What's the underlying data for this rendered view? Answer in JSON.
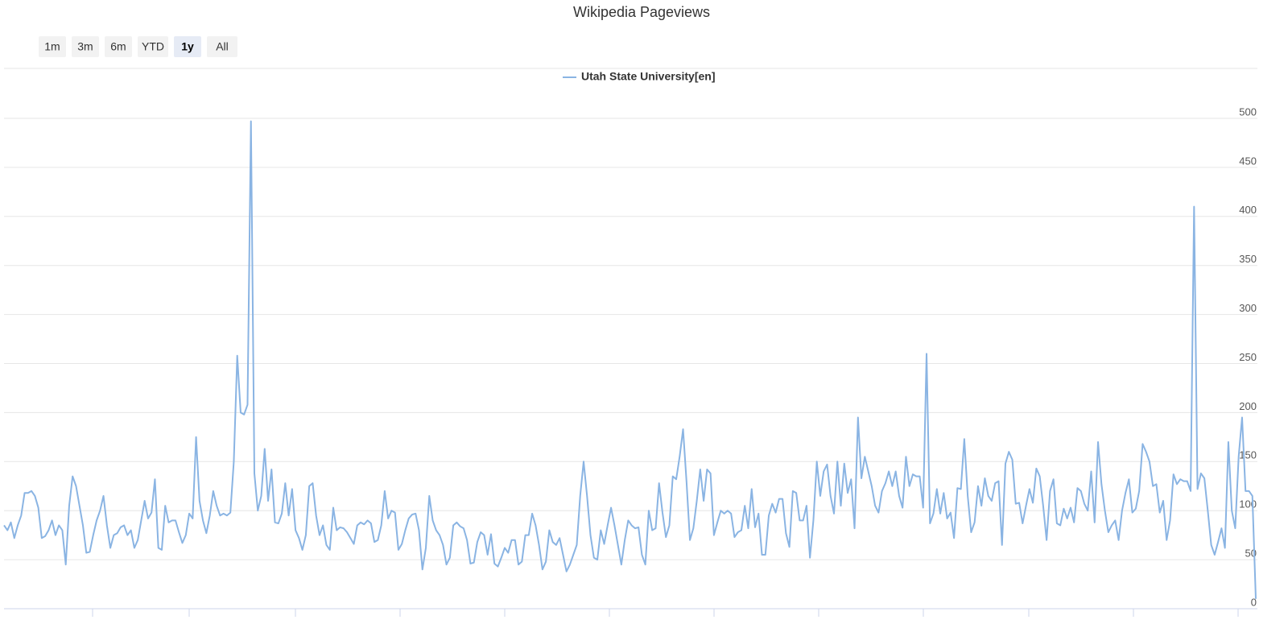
{
  "chart_data": {
    "type": "line",
    "title": "Wikipedia Pageviews",
    "range_buttons": [
      "1m",
      "3m",
      "6m",
      "YTD",
      "1y",
      "All"
    ],
    "selected_button": 4,
    "ylim": [
      0,
      500
    ],
    "yticks": [
      0,
      50,
      100,
      150,
      200,
      250,
      300,
      350,
      400,
      450,
      500
    ],
    "grid": true,
    "series": [
      {
        "name": "Utah State University[en]",
        "color": "#8ab4e3",
        "values": [
          85,
          80,
          88,
          72,
          85,
          95,
          118,
          118,
          120,
          115,
          103,
          72,
          74,
          80,
          90,
          75,
          85,
          80,
          45,
          105,
          135,
          125,
          105,
          85,
          57,
          58,
          75,
          90,
          100,
          115,
          85,
          62,
          75,
          77,
          83,
          85,
          75,
          80,
          62,
          70,
          90,
          110,
          92,
          98,
          132,
          62,
          60,
          105,
          88,
          90,
          90,
          78,
          67,
          75,
          97,
          92,
          175,
          110,
          90,
          77,
          95,
          120,
          105,
          95,
          97,
          95,
          98,
          150,
          258,
          200,
          198,
          208,
          497,
          138,
          100,
          115,
          163,
          110,
          142,
          88,
          87,
          97,
          128,
          95,
          122,
          80,
          72,
          60,
          75,
          125,
          128,
          95,
          75,
          85,
          65,
          60,
          103,
          80,
          83,
          82,
          78,
          72,
          66,
          85,
          88,
          86,
          90,
          87,
          68,
          70,
          85,
          120,
          92,
          100,
          98,
          60,
          66,
          80,
          92,
          96,
          97,
          80,
          40,
          62,
          115,
          90,
          80,
          75,
          65,
          45,
          52,
          85,
          88,
          84,
          82,
          70,
          46,
          47,
          68,
          78,
          75,
          55,
          76,
          46,
          43,
          52,
          62,
          57,
          70,
          70,
          45,
          48,
          75,
          75,
          97,
          85,
          65,
          40,
          48,
          80,
          68,
          65,
          72,
          55,
          38,
          45,
          55,
          65,
          115,
          150,
          115,
          75,
          52,
          50,
          80,
          66,
          85,
          103,
          85,
          65,
          45,
          70,
          90,
          85,
          82,
          83,
          55,
          45,
          100,
          80,
          82,
          128,
          98,
          73,
          85,
          135,
          132,
          155,
          183,
          130,
          70,
          82,
          110,
          142,
          110,
          142,
          138,
          75,
          88,
          100,
          97,
          100,
          97,
          73,
          78,
          80,
          105,
          82,
          122,
          83,
          97,
          55,
          55,
          95,
          107,
          98,
          112,
          112,
          77,
          63,
          120,
          118,
          90,
          90,
          105,
          52,
          90,
          150,
          115,
          140,
          147,
          115,
          97,
          150,
          105,
          148,
          118,
          132,
          82,
          195,
          133,
          155,
          140,
          125,
          105,
          98,
          120,
          128,
          140,
          125,
          140,
          115,
          103,
          155,
          125,
          137,
          135,
          135,
          103,
          260,
          87,
          97,
          122,
          97,
          118,
          92,
          98,
          72,
          123,
          122,
          173,
          115,
          78,
          88,
          125,
          105,
          133,
          115,
          110,
          128,
          130,
          65,
          148,
          160,
          152,
          107,
          108,
          87,
          105,
          122,
          108,
          143,
          135,
          105,
          70,
          120,
          132,
          87,
          85,
          102,
          92,
          103,
          88,
          123,
          120,
          107,
          100,
          140,
          88,
          170,
          127,
          100,
          78,
          85,
          90,
          70,
          100,
          118,
          132,
          98,
          102,
          120,
          168,
          160,
          150,
          125,
          127,
          98,
          110,
          70,
          90,
          137,
          127,
          132,
          130,
          130,
          120,
          410,
          122,
          138,
          133,
          100,
          65,
          55,
          68,
          82,
          62,
          170,
          100,
          82,
          155,
          195,
          120,
          120,
          115,
          10
        ]
      }
    ]
  }
}
